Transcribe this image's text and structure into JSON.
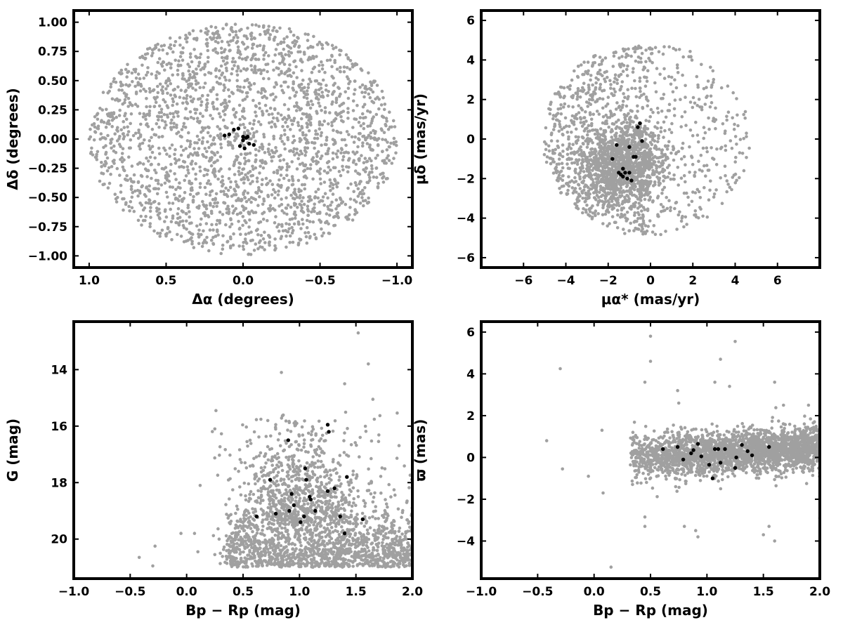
{
  "chart_data": [
    {
      "id": "sky",
      "type": "scatter",
      "xlabel": "Δα (degrees)",
      "ylabel": "Δδ (degrees)",
      "xlim": [
        1.1,
        -1.1
      ],
      "ylim": [
        -1.1,
        1.1
      ],
      "xticks": [
        1.0,
        0.5,
        0.0,
        -0.5,
        -1.0
      ],
      "xtick_labels": [
        "1.0",
        "0.5",
        "0.0",
        "−0.5",
        "−1.0"
      ],
      "yticks": [
        1.0,
        0.75,
        0.5,
        0.25,
        0.0,
        -0.25,
        -0.5,
        -0.75,
        -1.0
      ],
      "ytick_labels": [
        "1.00",
        "0.75",
        "0.50",
        "0.25",
        "0.00",
        "−0.25",
        "−0.50",
        "−0.75",
        "−1.00"
      ],
      "series": [
        {
          "color": "#a0a0a0",
          "distribution": {
            "shape": "uniform-disk",
            "center": [
              0,
              0
            ],
            "rx": 1.0,
            "ry": 0.99,
            "count": 2400
          }
        },
        {
          "color": "#000000",
          "x": [
            0.12,
            0.09,
            0.06,
            0.03,
            0.0,
            -0.02,
            -0.04,
            -0.07,
            -0.01,
            0.02,
            -0.03,
            0.0
          ],
          "y": [
            0.03,
            0.04,
            0.08,
            0.09,
            0.02,
            0.01,
            -0.04,
            -0.05,
            -0.08,
            -0.06,
            0.02,
            -0.01
          ]
        }
      ]
    },
    {
      "id": "pm",
      "type": "scatter",
      "xlabel": "μα* (mas/yr)",
      "ylabel": "μδ (mas/yr)",
      "xlim": [
        -8,
        8
      ],
      "ylim": [
        -6.5,
        6.5
      ],
      "xticks": [
        -6,
        -4,
        -2,
        0,
        2,
        4,
        6
      ],
      "xtick_labels": [
        "−6",
        "−4",
        "−2",
        "0",
        "2",
        "4",
        "6"
      ],
      "yticks": [
        6,
        4,
        2,
        0,
        -2,
        -4,
        -6
      ],
      "ytick_labels": [
        "6",
        "4",
        "2",
        "0",
        "−2",
        "−4",
        "−6"
      ],
      "series": [
        {
          "color": "#a0a0a0",
          "distribution": {
            "shape": "clump-in-disk",
            "clump_center": [
              -1.3,
              -1.3
            ],
            "disk_center": [
              -0.2,
              0
            ],
            "r": 4.9,
            "count": 2200
          }
        },
        {
          "color": "#000000",
          "x": [
            -1.8,
            -1.6,
            -1.3,
            -1.4,
            -1.2,
            -1.0,
            -0.9,
            -0.8,
            -1.1,
            -1.5,
            -0.6,
            -0.5,
            -0.4,
            -1.0,
            -0.7,
            -1.3
          ],
          "y": [
            -1.0,
            -0.3,
            -1.5,
            -1.8,
            -1.7,
            -1.7,
            -2.1,
            -0.9,
            -2.0,
            -1.7,
            0.6,
            0.8,
            -0.1,
            -0.4,
            -0.9,
            -1.9
          ]
        }
      ]
    },
    {
      "id": "cmd",
      "type": "scatter",
      "xlabel": "Bp − Rp (mag)",
      "ylabel": "G (mag)",
      "xlim": [
        -1.0,
        2.0
      ],
      "ylim": [
        21.4,
        12.3
      ],
      "xticks": [
        -1.0,
        -0.5,
        0.0,
        0.5,
        1.0,
        1.5,
        2.0
      ],
      "xtick_labels": [
        "−1.0",
        "−0.5",
        "0.0",
        "0.5",
        "1.0",
        "1.5",
        "2.0"
      ],
      "yticks": [
        20,
        18,
        16,
        14
      ],
      "ytick_labels": [
        "20",
        "18",
        "16",
        "14"
      ],
      "series": [
        {
          "color": "#a0a0a0",
          "distribution": {
            "shape": "cmd-band",
            "x_range": [
              0.2,
              2.0
            ],
            "y_range": [
              15.5,
              21.0
            ],
            "count": 2200
          }
        },
        {
          "color": "#000000",
          "x": [
            0.62,
            0.79,
            0.91,
            0.95,
            0.93,
            1.01,
            1.04,
            1.09,
            1.14,
            1.1,
            1.05,
            1.06,
            0.74,
            0.9,
            1.25,
            1.31,
            1.36,
            1.4,
            1.42,
            1.56,
            1.26,
            1.25
          ],
          "y": [
            19.2,
            19.1,
            19.0,
            18.8,
            18.4,
            19.4,
            19.2,
            18.5,
            19.0,
            18.6,
            17.5,
            17.9,
            17.9,
            16.5,
            18.3,
            18.2,
            19.2,
            19.8,
            17.8,
            19.3,
            16.2,
            15.95
          ]
        }
      ]
    },
    {
      "id": "plx",
      "type": "scatter",
      "xlabel": "Bp − Rp (mag)",
      "ylabel": "ϖ (mas)",
      "xlim": [
        -1.0,
        2.0
      ],
      "ylim": [
        -5.8,
        6.5
      ],
      "xticks": [
        -1.0,
        -0.5,
        0.0,
        0.5,
        1.0,
        1.5,
        2.0
      ],
      "xtick_labels": [
        "−1.0",
        "−0.5",
        "0.0",
        "0.5",
        "1.0",
        "1.5",
        "2.0"
      ],
      "yticks": [
        6,
        4,
        2,
        0,
        -2,
        -4
      ],
      "ytick_labels": [
        "6",
        "4",
        "2",
        "0",
        "−2",
        "−4"
      ],
      "series": [
        {
          "color": "#a0a0a0",
          "distribution": {
            "shape": "horizontal-band",
            "x_range": [
              0.3,
              2.0
            ],
            "center_y": 0.2,
            "count": 2400
          }
        },
        {
          "color": "#000000",
          "x": [
            0.61,
            0.74,
            0.79,
            0.88,
            0.92,
            0.95,
            1.02,
            1.05,
            1.07,
            1.12,
            1.16,
            1.25,
            1.26,
            1.31,
            1.36,
            1.4,
            1.55,
            0.86,
            1.1
          ],
          "y": [
            0.4,
            0.5,
            -0.1,
            0.35,
            0.65,
            0.05,
            -0.35,
            -1.0,
            0.4,
            -0.25,
            0.4,
            -0.5,
            0.0,
            0.6,
            0.3,
            0.1,
            0.5,
            0.2,
            0.4
          ]
        }
      ]
    }
  ]
}
